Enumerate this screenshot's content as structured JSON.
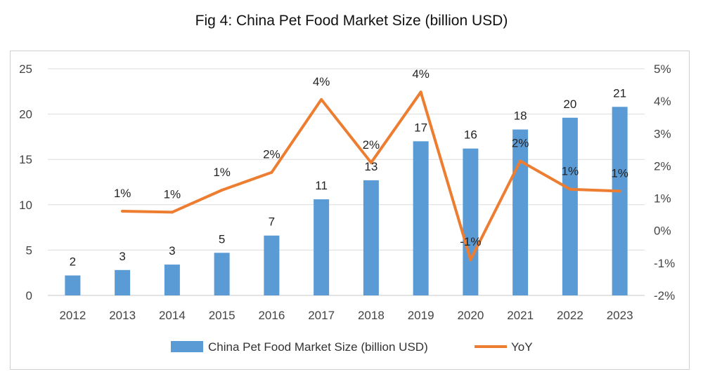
{
  "chart_data": {
    "type": "bar",
    "title": "Fig 4: China Pet Food Market Size (billion USD)",
    "categories": [
      "2012",
      "2013",
      "2014",
      "2015",
      "2016",
      "2017",
      "2018",
      "2019",
      "2020",
      "2021",
      "2022",
      "2023"
    ],
    "series": [
      {
        "name": "China Pet Food Market Size (billion USD)",
        "kind": "bar",
        "axis": "left",
        "values": [
          2.2,
          2.8,
          3.4,
          4.7,
          6.6,
          10.6,
          12.7,
          17.0,
          16.2,
          18.3,
          19.6,
          20.8
        ],
        "labels": [
          "2",
          "3",
          "3",
          "5",
          "7",
          "11",
          "13",
          "17",
          "16",
          "18",
          "20",
          "21"
        ],
        "color": "#5b9bd5"
      },
      {
        "name": "YoY",
        "kind": "line",
        "axis": "right",
        "values": [
          null,
          0.6,
          0.57,
          1.25,
          1.8,
          4.05,
          2.1,
          4.28,
          -0.9,
          2.15,
          1.28,
          1.22
        ],
        "labels": [
          null,
          "1%",
          "1%",
          "1%",
          "2%",
          "4%",
          "2%",
          "4%",
          "-1%",
          "2%",
          "1%",
          "1%"
        ],
        "color": "#ed7d31"
      }
    ],
    "y_left": {
      "ylim": [
        0,
        25
      ],
      "ticks": [
        "0",
        "5",
        "10",
        "15",
        "20",
        "25"
      ]
    },
    "y_right": {
      "ylim": [
        -2,
        5
      ],
      "ticks": [
        "-2%",
        "-1%",
        "0%",
        "1%",
        "2%",
        "3%",
        "4%",
        "5%"
      ]
    },
    "grid": true,
    "legend_position": "bottom"
  }
}
